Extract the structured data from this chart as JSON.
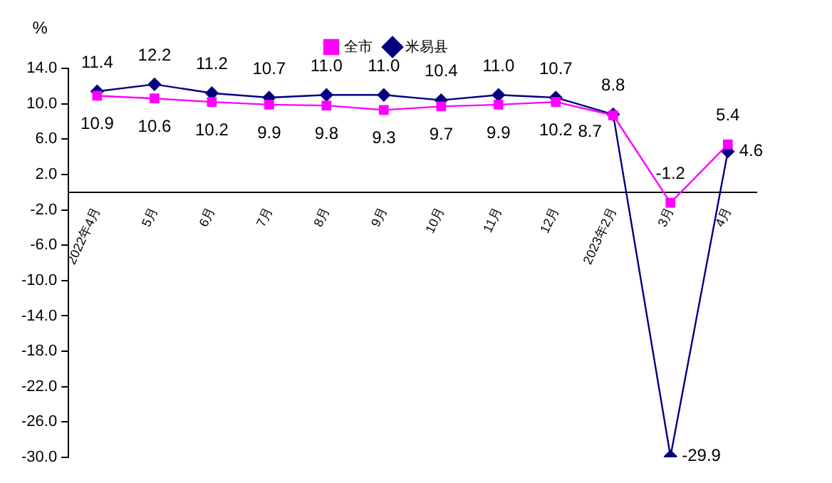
{
  "chart_data": {
    "type": "line",
    "ylabel": "%",
    "categories": [
      "2022年4月",
      "5月",
      "6月",
      "7月",
      "8月",
      "9月",
      "10月",
      "11月",
      "12月",
      "2023年2月",
      "3月",
      "4月"
    ],
    "series": [
      {
        "name": "全市",
        "color": "#ff00ff",
        "marker": "square",
        "values": [
          10.9,
          10.6,
          10.2,
          9.9,
          9.8,
          9.3,
          9.7,
          9.9,
          10.2,
          8.7,
          -1.2,
          5.4
        ],
        "value_labels": [
          "10.9",
          "10.6",
          "10.2",
          "9.9",
          "9.8",
          "9.3",
          "9.7",
          "9.9",
          "10.2",
          "8.7",
          "-1.2",
          "5.4"
        ]
      },
      {
        "name": "米易县",
        "color": "#000080",
        "marker": "diamond",
        "values": [
          11.4,
          12.2,
          11.2,
          10.7,
          11.0,
          11.0,
          10.4,
          11.0,
          10.7,
          8.8,
          -29.9,
          4.6
        ],
        "value_labels": [
          "11.4",
          "12.2",
          "11.2",
          "10.7",
          "11.0",
          "11.0",
          "10.4",
          "11.0",
          "10.7",
          "8.8",
          "-29.9",
          "4.6"
        ]
      }
    ],
    "ylim": [
      -30,
      14
    ],
    "yticks": [
      {
        "value": 14,
        "label": "14.0"
      },
      {
        "value": 10,
        "label": "10.0"
      },
      {
        "value": 6,
        "label": "6.0"
      },
      {
        "value": 2,
        "label": "2.0"
      },
      {
        "value": -2,
        "label": "-2.0"
      },
      {
        "value": -6,
        "label": "-6.0"
      },
      {
        "value": -10,
        "label": "-10.0"
      },
      {
        "value": -14,
        "label": "-14.0"
      },
      {
        "value": -18,
        "label": "-18.0"
      },
      {
        "value": -22,
        "label": "-22.0"
      },
      {
        "value": -26,
        "label": "-26.0"
      },
      {
        "value": -30,
        "label": "-30.0"
      }
    ],
    "grid": false,
    "legend": "top",
    "line_style": "solid"
  }
}
